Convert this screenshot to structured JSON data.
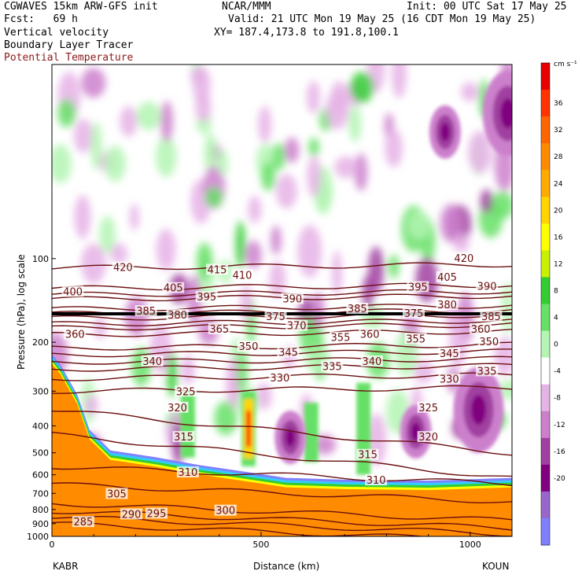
{
  "header": {
    "model": "CGWAVES 15km ARW-GFS init",
    "fcst_label": "Fcst:",
    "fcst_value": "69 h",
    "field1": "Vertical velocity",
    "field2": "Boundary Layer Tracer",
    "field3": "Potential Temperature",
    "center": "NCAR/MMM",
    "init": "Init: 00 UTC Sat 17 May 25",
    "valid": "Valid: 21 UTC Mon 19 May 25 (16 CDT Mon 19 May 25)",
    "xy": "XY= 187.4,173.8 to 191.8,100.1"
  },
  "colors": {
    "theta": "#6b0f0f",
    "tracer": "#ff8c00",
    "background": "#ffffff"
  },
  "chart_data": {
    "type": "heatmap",
    "title": "Vertical velocity",
    "xlabel": "Distance (km)",
    "ylabel": "Pressure (hPa), log scale",
    "xlim": [
      0,
      1100
    ],
    "ylim": [
      1000,
      20
    ],
    "log_y": true,
    "x_ticks": [
      0,
      500,
      1000
    ],
    "y_ticks": [
      100,
      200,
      300,
      400,
      500,
      600,
      700,
      800,
      900,
      1000
    ],
    "left_station": "KABR",
    "right_station": "KOUN",
    "colorbar": {
      "unit": "cm s⁻¹",
      "levels": [
        36,
        32,
        28,
        24,
        20,
        16,
        12,
        8,
        4,
        0,
        -4,
        -8,
        -12,
        -16,
        -20
      ],
      "colors": [
        "#e60000",
        "#ff3300",
        "#ff6600",
        "#ff8c00",
        "#ffaa00",
        "#ffd400",
        "#ffff00",
        "#c8f000",
        "#33cc33",
        "#66e066",
        "#b3f5b3",
        "#ffffff",
        "#e6b3e6",
        "#cc80cc",
        "#a040a0",
        "#800080",
        "#9966cc",
        "#8080ff"
      ]
    },
    "theta_contours": {
      "left": [
        {
          "value": "420",
          "p": 108
        },
        {
          "value": "405",
          "p": 128
        },
        {
          "value": "400",
          "p": 135
        },
        {
          "value": "395",
          "p": 140
        },
        {
          "value": "385",
          "p": 152
        },
        {
          "value": "380",
          "p": 158
        },
        {
          "value": "375",
          "p": 164
        },
        {
          "value": "370",
          "p": 172
        },
        {
          "value": "365",
          "p": 178
        },
        {
          "value": "360",
          "p": 188
        },
        {
          "value": "350",
          "p": 210
        },
        {
          "value": "345",
          "p": 222
        },
        {
          "value": "340",
          "p": 236
        },
        {
          "value": "335",
          "p": 250
        },
        {
          "value": "330",
          "p": 270
        },
        {
          "value": "325",
          "p": 300
        },
        {
          "value": "320",
          "p": 350
        },
        {
          "value": "315",
          "p": 430
        },
        {
          "value": "310",
          "p": 560
        },
        {
          "value": "305",
          "p": 650
        },
        {
          "value": "300",
          "p": 760
        },
        {
          "value": "295",
          "p": 810
        },
        {
          "value": "290",
          "p": 850
        },
        {
          "value": "285",
          "p": 900
        }
      ]
    },
    "theta_labels": [
      {
        "text": "420",
        "x": 170,
        "p": 108
      },
      {
        "text": "415",
        "x": 395,
        "p": 110
      },
      {
        "text": "410",
        "x": 455,
        "p": 115
      },
      {
        "text": "420",
        "x": 985,
        "p": 100
      },
      {
        "text": "400",
        "x": 50,
        "p": 132
      },
      {
        "text": "405",
        "x": 290,
        "p": 128
      },
      {
        "text": "395",
        "x": 370,
        "p": 138
      },
      {
        "text": "390",
        "x": 575,
        "p": 140
      },
      {
        "text": "395",
        "x": 875,
        "p": 127
      },
      {
        "text": "405",
        "x": 945,
        "p": 117
      },
      {
        "text": "390",
        "x": 1040,
        "p": 126
      },
      {
        "text": "385",
        "x": 225,
        "p": 155
      },
      {
        "text": "380",
        "x": 300,
        "p": 160
      },
      {
        "text": "375",
        "x": 535,
        "p": 162
      },
      {
        "text": "385",
        "x": 730,
        "p": 152
      },
      {
        "text": "375",
        "x": 865,
        "p": 158
      },
      {
        "text": "380",
        "x": 945,
        "p": 147
      },
      {
        "text": "385",
        "x": 1050,
        "p": 162
      },
      {
        "text": "365",
        "x": 400,
        "p": 180
      },
      {
        "text": "370",
        "x": 585,
        "p": 175
      },
      {
        "text": "360",
        "x": 55,
        "p": 188
      },
      {
        "text": "355",
        "x": 690,
        "p": 193
      },
      {
        "text": "360",
        "x": 760,
        "p": 188
      },
      {
        "text": "355",
        "x": 870,
        "p": 195
      },
      {
        "text": "360",
        "x": 1025,
        "p": 180
      },
      {
        "text": "350",
        "x": 1045,
        "p": 200
      },
      {
        "text": "350",
        "x": 470,
        "p": 208
      },
      {
        "text": "345",
        "x": 565,
        "p": 218
      },
      {
        "text": "340",
        "x": 240,
        "p": 235
      },
      {
        "text": "335",
        "x": 670,
        "p": 245
      },
      {
        "text": "340",
        "x": 765,
        "p": 235
      },
      {
        "text": "345",
        "x": 950,
        "p": 220
      },
      {
        "text": "335",
        "x": 1040,
        "p": 255
      },
      {
        "text": "330",
        "x": 545,
        "p": 270
      },
      {
        "text": "330",
        "x": 950,
        "p": 272
      },
      {
        "text": "325",
        "x": 320,
        "p": 302
      },
      {
        "text": "325",
        "x": 900,
        "p": 345
      },
      {
        "text": "320",
        "x": 300,
        "p": 345
      },
      {
        "text": "320",
        "x": 900,
        "p": 440
      },
      {
        "text": "315",
        "x": 315,
        "p": 440
      },
      {
        "text": "315",
        "x": 755,
        "p": 510
      },
      {
        "text": "310",
        "x": 325,
        "p": 590
      },
      {
        "text": "310",
        "x": 775,
        "p": 630
      },
      {
        "text": "305",
        "x": 155,
        "p": 705
      },
      {
        "text": "300",
        "x": 415,
        "p": 810
      },
      {
        "text": "295",
        "x": 250,
        "p": 830
      },
      {
        "text": "290",
        "x": 190,
        "p": 835
      },
      {
        "text": "285",
        "x": 75,
        "p": 890
      }
    ],
    "updrafts": [
      {
        "x": 470,
        "top": 300,
        "bottom": 560,
        "intensity": "strong"
      },
      {
        "x": 325,
        "top": 300,
        "bottom": 520,
        "intensity": "moderate"
      },
      {
        "x": 620,
        "top": 330,
        "bottom": 540,
        "intensity": "moderate"
      },
      {
        "x": 745,
        "top": 280,
        "bottom": 600,
        "intensity": "moderate"
      }
    ],
    "downdrafts": [
      {
        "x": 1020,
        "p": 350,
        "intensity": "strong"
      },
      {
        "x": 870,
        "p": 420,
        "intensity": "moderate"
      },
      {
        "x": 570,
        "p": 440,
        "intensity": "moderate"
      },
      {
        "x": 940,
        "p": 35,
        "intensity": "moderate"
      },
      {
        "x": 1090,
        "p": 30,
        "intensity": "strong"
      }
    ]
  }
}
